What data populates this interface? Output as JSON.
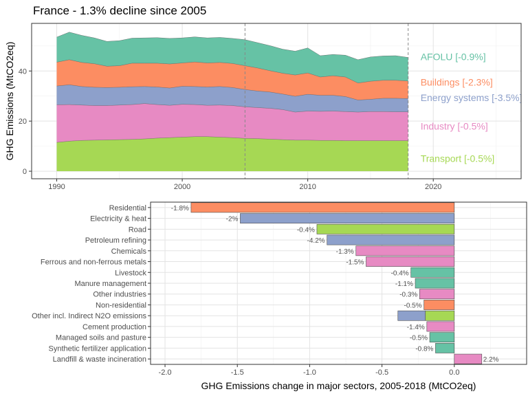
{
  "title": "France - 1.3% decline since 2005",
  "colors": {
    "afolu": "#66c2a5",
    "buildings": "#fc8d62",
    "energy": "#8da0cb",
    "industry": "#e78ac3",
    "transport": "#a6d854"
  },
  "chart_data": [
    {
      "type": "area",
      "stacked": true,
      "ylabel": "GHG Emissions (MtCO2eq)",
      "xlabel": "",
      "xlim": [
        1988,
        2027
      ],
      "ylim": [
        -3,
        59
      ],
      "x_ticks": [
        1990,
        2000,
        2010,
        2020
      ],
      "y_ticks": [
        0,
        20,
        40
      ],
      "grid": true,
      "reference_lines_x": [
        2005,
        2018
      ],
      "years": [
        1990,
        1991,
        1992,
        1993,
        1994,
        1995,
        1996,
        1997,
        1998,
        1999,
        2000,
        2001,
        2002,
        2003,
        2004,
        2005,
        2006,
        2007,
        2008,
        2009,
        2010,
        2011,
        2012,
        2013,
        2014,
        2015,
        2016,
        2017,
        2018
      ],
      "series": [
        {
          "key": "transport",
          "name": "Transport [-0.5%]",
          "values": [
            11.5,
            12,
            12.3,
            12.4,
            12.5,
            12.6,
            12.7,
            12.9,
            13.2,
            13.4,
            13.6,
            13.8,
            13.8,
            13.6,
            13.4,
            13.1,
            13,
            12.8,
            12.6,
            12.4,
            12.4,
            12.3,
            12.3,
            12.2,
            12.2,
            12.2,
            12.2,
            12.2,
            12.2
          ]
        },
        {
          "key": "industry",
          "name": "Industry [-0.5%]",
          "values": [
            15,
            14.6,
            14.1,
            13.8,
            13.7,
            13.8,
            13.9,
            14.1,
            13.4,
            12.9,
            13.1,
            12.8,
            12.5,
            12.8,
            12.8,
            12.6,
            12.4,
            12.3,
            12,
            11.2,
            11.6,
            11.6,
            11.7,
            11.6,
            11.4,
            11.6,
            11.6,
            11.5,
            11.5
          ]
        },
        {
          "key": "energy",
          "name": "Energy systems [-3.5%]",
          "values": [
            7.5,
            7.9,
            7.4,
            7.3,
            7.2,
            7.1,
            7.1,
            6.8,
            7,
            6.9,
            7.2,
            7.2,
            7.3,
            7.4,
            7.2,
            6.9,
            6.6,
            6.5,
            6.2,
            6.3,
            6.7,
            6.4,
            6.3,
            6,
            4.8,
            4.9,
            5.3,
            5.4,
            5.3
          ]
        },
        {
          "key": "buildings",
          "name": "Buildings [-2.3%]",
          "values": [
            9.5,
            10,
            9.6,
            9.4,
            8.5,
            8.6,
            9.4,
            9.3,
            9.5,
            9.6,
            9.3,
            9.8,
            9.6,
            9.6,
            9.6,
            9.5,
            9.2,
            8.5,
            8.3,
            8.5,
            8.5,
            7.3,
            7.8,
            7.8,
            6.8,
            7.2,
            7.2,
            7.2,
            7
          ]
        },
        {
          "key": "afolu",
          "name": "AFOLU [-0.9%]",
          "values": [
            10,
            11,
            10.8,
            10.3,
            9.9,
            10,
            10,
            10.1,
            10.2,
            10.2,
            10,
            10,
            10,
            10,
            10,
            10.4,
            10.1,
            10,
            9.6,
            9.5,
            10,
            8.5,
            8.5,
            8.7,
            9.3,
            9.7,
            9.7,
            9.8,
            9.4
          ]
        }
      ]
    },
    {
      "type": "bar",
      "orientation": "horizontal",
      "xlabel": "GHG Emissions change in major sectors, 2005-2018 (MtCO2eq)",
      "ylabel": "",
      "xlim": [
        -2.1,
        0.5
      ],
      "x_ticks": [
        -2.0,
        -1.5,
        -1.0,
        -0.5,
        0.0
      ],
      "x_tick_labels": [
        "-2.0",
        "-1.5",
        "-1.0",
        "-0.5",
        "0.0"
      ],
      "grid": true,
      "bars": [
        {
          "label": "Residential",
          "segments": [
            {
              "sector": "buildings",
              "value": -1.82
            }
          ],
          "pct": "-1.8%"
        },
        {
          "label": "Electricity & heat",
          "segments": [
            {
              "sector": "energy",
              "value": -1.48
            }
          ],
          "pct": "-2%"
        },
        {
          "label": "Road",
          "segments": [
            {
              "sector": "transport",
              "value": -0.95
            }
          ],
          "pct": "-0.4%"
        },
        {
          "label": "Petroleum refining",
          "segments": [
            {
              "sector": "energy",
              "value": -0.88
            }
          ],
          "pct": "-4.2%"
        },
        {
          "label": "Chemicals",
          "segments": [
            {
              "sector": "industry",
              "value": -0.68
            }
          ],
          "pct": "-1.3%"
        },
        {
          "label": "Ferrous and non-ferrous metals",
          "segments": [
            {
              "sector": "industry",
              "value": -0.61
            }
          ],
          "pct": "-1.5%"
        },
        {
          "label": "Livestock",
          "segments": [
            {
              "sector": "afolu",
              "value": -0.3
            }
          ],
          "pct": "-0.4%"
        },
        {
          "label": "Manure management",
          "segments": [
            {
              "sector": "afolu",
              "value": -0.27
            }
          ],
          "pct": "-1.1%"
        },
        {
          "label": "Other industries",
          "segments": [
            {
              "sector": "industry",
              "value": -0.24
            }
          ],
          "pct": "-0.3%"
        },
        {
          "label": "Non-residential",
          "segments": [
            {
              "sector": "buildings",
              "value": -0.21
            }
          ],
          "pct": "-0.5%"
        },
        {
          "label": "Other incl. Indirect N2O emissions",
          "segments": [
            {
              "sector": "transport",
              "value": -0.2
            },
            {
              "sector": "energy",
              "value": -0.19
            }
          ],
          "pct": ""
        },
        {
          "label": "Cement production",
          "segments": [
            {
              "sector": "industry",
              "value": -0.19
            }
          ],
          "pct": "-1.4%"
        },
        {
          "label": "Managed soils and pasture",
          "segments": [
            {
              "sector": "afolu",
              "value": -0.17
            }
          ],
          "pct": "-0.5%"
        },
        {
          "label": "Synthetic fertilizer application",
          "segments": [
            {
              "sector": "afolu",
              "value": -0.13
            }
          ],
          "pct": "-0.8%"
        },
        {
          "label": "Landfill & waste incineration",
          "segments": [
            {
              "sector": "industry",
              "value": 0.19
            }
          ],
          "pct": "2.2%"
        }
      ]
    }
  ]
}
